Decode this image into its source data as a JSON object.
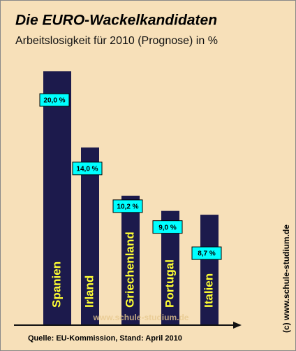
{
  "chart_data": {
    "type": "bar",
    "title": "Die EURO-Wackelkandidaten",
    "subtitle": "Arbeitslosigkeit für 2010 (Prognose) in %",
    "categories": [
      "Spanien",
      "Irland",
      "Griechenland",
      "Portugal",
      "Italien"
    ],
    "values": [
      20.0,
      14.0,
      10.2,
      9.0,
      8.7
    ],
    "value_labels": [
      "20,0 %",
      "14,0 %",
      "10,2 %",
      "9,0 %",
      "8,7 %"
    ],
    "color": "#1c1a4c",
    "label_color": "#00ffff",
    "category_color": "#ffff33",
    "source": "Quelle: EU-Kommission,  Stand: April 2010",
    "copyright": "(c) www.schule-studium.de",
    "watermark": "www.schule-studium.de"
  }
}
